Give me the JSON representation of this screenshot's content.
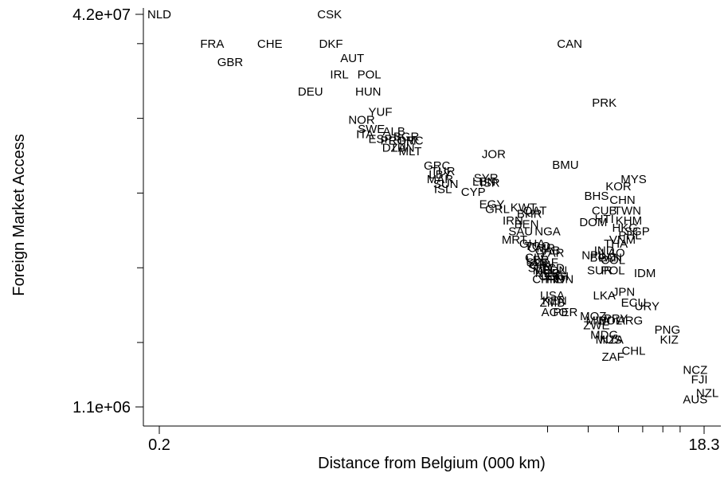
{
  "chart_data": {
    "type": "scatter",
    "marker": "text-label",
    "xlabel": "Distance from Belgium (000 km)",
    "ylabel": "Foreign Market Access",
    "xscale": "log",
    "yscale": "log",
    "xlim": [
      0.2,
      18.3
    ],
    "ylim": [
      1100000,
      42000000
    ],
    "xticks": [
      {
        "value": 0.2,
        "label": "0.2"
      },
      {
        "value": 18.3,
        "label": "18.3"
      }
    ],
    "yticks": [
      {
        "value": 1100000,
        "label": "1.1e+06"
      },
      {
        "value": 42000000,
        "label": "4.2e+07"
      }
    ],
    "points": [
      {
        "label": "NLD",
        "x": 0.2,
        "y": 42000000
      },
      {
        "label": "CSK",
        "x": 0.82,
        "y": 42000000
      },
      {
        "label": "FRA",
        "x": 0.31,
        "y": 32000000
      },
      {
        "label": "CHE",
        "x": 0.5,
        "y": 32000000
      },
      {
        "label": "DKF",
        "x": 0.83,
        "y": 32000000
      },
      {
        "label": "CAN",
        "x": 6.0,
        "y": 32000000
      },
      {
        "label": "GBR",
        "x": 0.36,
        "y": 27000000
      },
      {
        "label": "AUT",
        "x": 0.99,
        "y": 28000000
      },
      {
        "label": "IRL",
        "x": 0.89,
        "y": 24000000
      },
      {
        "label": "POL",
        "x": 1.14,
        "y": 24000000
      },
      {
        "label": "DEU",
        "x": 0.7,
        "y": 20500000
      },
      {
        "label": "HUN",
        "x": 1.13,
        "y": 20500000
      },
      {
        "label": "PRK",
        "x": 8.0,
        "y": 18500000
      },
      {
        "label": "YUF",
        "x": 1.25,
        "y": 17000000
      },
      {
        "label": "NOR",
        "x": 1.07,
        "y": 15800000
      },
      {
        "label": "SWE",
        "x": 1.16,
        "y": 14500000
      },
      {
        "label": "ALB",
        "x": 1.4,
        "y": 14200000
      },
      {
        "label": "ITA",
        "x": 1.1,
        "y": 13800000
      },
      {
        "label": "BGR",
        "x": 1.55,
        "y": 13500000
      },
      {
        "label": "ESP",
        "x": 1.25,
        "y": 13200000
      },
      {
        "label": "PRT",
        "x": 1.38,
        "y": 13000000
      },
      {
        "label": "ROM",
        "x": 1.5,
        "y": 13000000
      },
      {
        "label": "GRC",
        "x": 1.6,
        "y": 13000000
      },
      {
        "label": "DZA",
        "x": 1.4,
        "y": 12200000
      },
      {
        "label": "TUN",
        "x": 1.5,
        "y": 12200000
      },
      {
        "label": "MLT",
        "x": 1.6,
        "y": 11800000
      },
      {
        "label": "JOR",
        "x": 3.2,
        "y": 11500000
      },
      {
        "label": "BMU",
        "x": 5.8,
        "y": 10400000
      },
      {
        "label": "GRC",
        "x": 2.0,
        "y": 10300000
      },
      {
        "label": "TUR",
        "x": 2.1,
        "y": 9800000
      },
      {
        "label": "LBY",
        "x": 2.05,
        "y": 9500000
      },
      {
        "label": "MAR",
        "x": 2.05,
        "y": 9100000
      },
      {
        "label": "SYR",
        "x": 3.0,
        "y": 9200000
      },
      {
        "label": "LBN",
        "x": 2.95,
        "y": 8900000
      },
      {
        "label": "ISR",
        "x": 3.1,
        "y": 8800000
      },
      {
        "label": "MYS",
        "x": 10.2,
        "y": 9100000
      },
      {
        "label": "SUN",
        "x": 2.15,
        "y": 8700000
      },
      {
        "label": "ISL",
        "x": 2.1,
        "y": 8300000
      },
      {
        "label": "CYP",
        "x": 2.7,
        "y": 8100000
      },
      {
        "label": "KOR",
        "x": 9.0,
        "y": 8500000
      },
      {
        "label": "BHS",
        "x": 7.5,
        "y": 7800000
      },
      {
        "label": "CHN",
        "x": 9.3,
        "y": 7500000
      },
      {
        "label": "EGY",
        "x": 3.15,
        "y": 7200000
      },
      {
        "label": "GRL",
        "x": 3.3,
        "y": 6900000
      },
      {
        "label": "KWT",
        "x": 4.1,
        "y": 7000000
      },
      {
        "label": "QAT",
        "x": 4.5,
        "y": 6800000
      },
      {
        "label": "BHR",
        "x": 4.3,
        "y": 6600000
      },
      {
        "label": "CUB",
        "x": 8.0,
        "y": 6800000
      },
      {
        "label": "TWN",
        "x": 9.7,
        "y": 6800000
      },
      {
        "label": "IRN",
        "x": 3.75,
        "y": 6200000
      },
      {
        "label": "BEN",
        "x": 4.2,
        "y": 6000000
      },
      {
        "label": "HTI",
        "x": 8.0,
        "y": 6300000
      },
      {
        "label": "KHM",
        "x": 9.8,
        "y": 6200000
      },
      {
        "label": "DOM",
        "x": 7.3,
        "y": 6100000
      },
      {
        "label": "SAU",
        "x": 4.0,
        "y": 5600000
      },
      {
        "label": "NGA",
        "x": 5.0,
        "y": 5600000
      },
      {
        "label": "HKG",
        "x": 9.5,
        "y": 5800000
      },
      {
        "label": "PHL",
        "x": 9.9,
        "y": 5400000
      },
      {
        "label": "SGP",
        "x": 10.5,
        "y": 5600000
      },
      {
        "label": "MRT",
        "x": 3.8,
        "y": 5200000
      },
      {
        "label": "GHA",
        "x": 4.4,
        "y": 5000000
      },
      {
        "label": "TGO",
        "x": 4.6,
        "y": 4900000
      },
      {
        "label": "CMR",
        "x": 4.75,
        "y": 4800000
      },
      {
        "label": "GAB",
        "x": 5.0,
        "y": 4700000
      },
      {
        "label": "ZAR",
        "x": 5.2,
        "y": 4600000
      },
      {
        "label": "VNM",
        "x": 9.3,
        "y": 5200000
      },
      {
        "label": "THA",
        "x": 8.8,
        "y": 5000000
      },
      {
        "label": "IND",
        "x": 8.0,
        "y": 4700000
      },
      {
        "label": "NPL",
        "x": 7.3,
        "y": 4500000
      },
      {
        "label": "BGD",
        "x": 7.9,
        "y": 4400000
      },
      {
        "label": "LAO",
        "x": 8.6,
        "y": 4600000
      },
      {
        "label": "PAN",
        "x": 8.4,
        "y": 4400000
      },
      {
        "label": "COL",
        "x": 8.6,
        "y": 4300000
      },
      {
        "label": "CIV",
        "x": 4.5,
        "y": 4400000
      },
      {
        "label": "LBR",
        "x": 4.6,
        "y": 4300000
      },
      {
        "label": "SLE",
        "x": 4.6,
        "y": 4200000
      },
      {
        "label": "GIN",
        "x": 4.7,
        "y": 4100000
      },
      {
        "label": "SEN",
        "x": 4.7,
        "y": 4000000
      },
      {
        "label": "MLI",
        "x": 4.8,
        "y": 3900000
      },
      {
        "label": "CAF",
        "x": 4.95,
        "y": 4200000
      },
      {
        "label": "TCD",
        "x": 5.2,
        "y": 4000000
      },
      {
        "label": "SDN",
        "x": 5.3,
        "y": 3900000
      },
      {
        "label": "NER",
        "x": 5.0,
        "y": 3800000
      },
      {
        "label": "COG",
        "x": 5.2,
        "y": 3700000
      },
      {
        "label": "ETH",
        "x": 5.4,
        "y": 3700000
      },
      {
        "label": "CHR",
        "x": 4.9,
        "y": 3600000
      },
      {
        "label": "FIN",
        "x": 5.3,
        "y": 3600000
      },
      {
        "label": "IDN",
        "x": 5.7,
        "y": 3600000
      },
      {
        "label": "SUR",
        "x": 7.7,
        "y": 3900000
      },
      {
        "label": "POL",
        "x": 8.6,
        "y": 3900000
      },
      {
        "label": "IDM",
        "x": 11.2,
        "y": 3800000
      },
      {
        "label": "JPN",
        "x": 9.4,
        "y": 3200000
      },
      {
        "label": "LKA",
        "x": 8.0,
        "y": 3100000
      },
      {
        "label": "USA",
        "x": 5.2,
        "y": 3100000
      },
      {
        "label": "KEN",
        "x": 5.3,
        "y": 2950000
      },
      {
        "label": "ZMB",
        "x": 5.2,
        "y": 2900000
      },
      {
        "label": "ECU",
        "x": 10.2,
        "y": 2900000
      },
      {
        "label": "URY",
        "x": 11.4,
        "y": 2800000
      },
      {
        "label": "AGO",
        "x": 5.3,
        "y": 2650000
      },
      {
        "label": "PER",
        "x": 5.8,
        "y": 2650000
      },
      {
        "label": "MOZ",
        "x": 7.3,
        "y": 2550000
      },
      {
        "label": "MWI",
        "x": 7.6,
        "y": 2450000
      },
      {
        "label": "ZWE",
        "x": 7.5,
        "y": 2350000
      },
      {
        "label": "BOL",
        "x": 8.4,
        "y": 2450000
      },
      {
        "label": "PRY",
        "x": 8.8,
        "y": 2500000
      },
      {
        "label": "ARG",
        "x": 9.9,
        "y": 2450000
      },
      {
        "label": "PNG",
        "x": 13.5,
        "y": 2250000
      },
      {
        "label": "MDG",
        "x": 8.0,
        "y": 2150000
      },
      {
        "label": "MUS",
        "x": 8.3,
        "y": 2050000
      },
      {
        "label": "NZA",
        "x": 8.5,
        "y": 2050000
      },
      {
        "label": "KIZ",
        "x": 13.7,
        "y": 2050000
      },
      {
        "label": "CHL",
        "x": 10.2,
        "y": 1850000
      },
      {
        "label": "ZAF",
        "x": 8.6,
        "y": 1750000
      },
      {
        "label": "NCZ",
        "x": 17.0,
        "y": 1550000
      },
      {
        "label": "FJI",
        "x": 17.6,
        "y": 1420000
      },
      {
        "label": "NZL",
        "x": 18.8,
        "y": 1250000
      },
      {
        "label": "AUS",
        "x": 17.0,
        "y": 1180000
      }
    ]
  }
}
